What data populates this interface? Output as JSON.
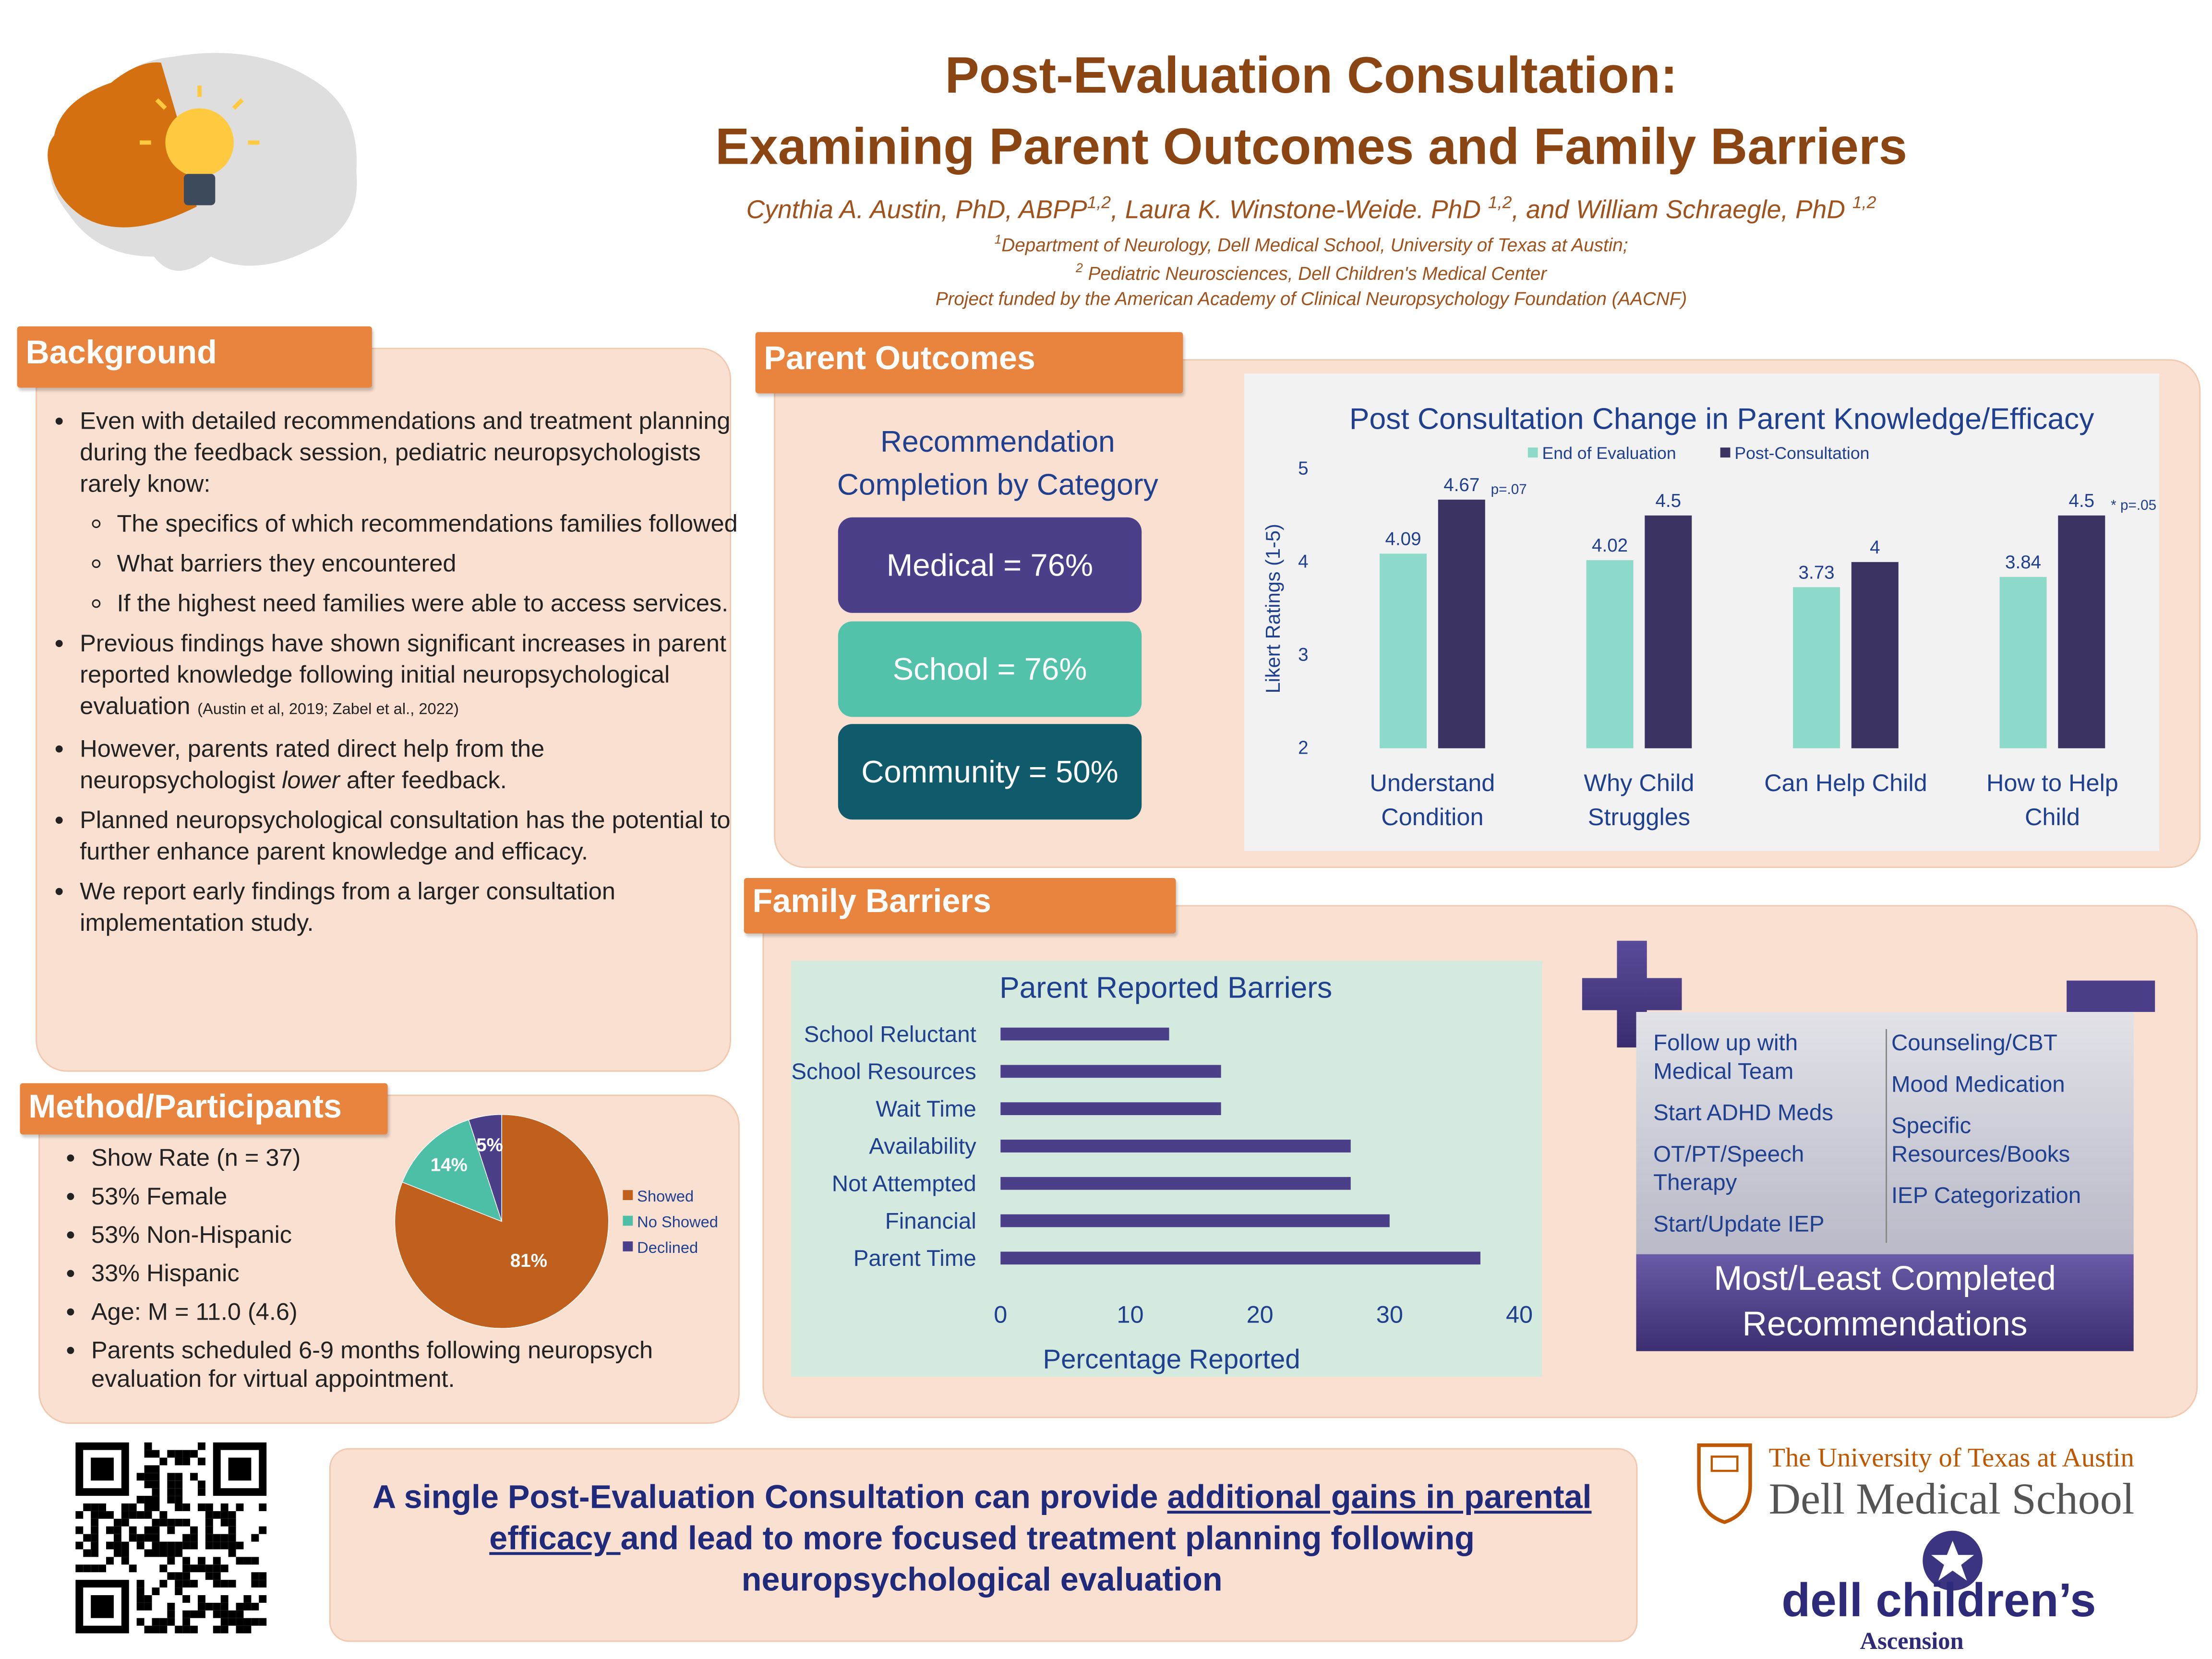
{
  "header": {
    "title": [
      "Post-Evaluation Consultation:",
      "Examining Parent Outcomes and Family Barriers"
    ],
    "authors": [
      {
        "name": "Cynthia A. Austin, PhD, ABPP",
        "sup": "1,2"
      },
      {
        "name": ", Laura K. Winstone-Weide. PhD ",
        "sup": "1,2"
      },
      {
        "name": ", and William Schraegle, PhD ",
        "sup": "1,2"
      }
    ],
    "affiliations": [
      {
        "sup": "1",
        "text": "Department of Neurology, Dell Medical School, University of Texas at Austin;"
      },
      {
        "sup": "2",
        "text": " Pediatric Neurosciences, Dell Children's Medical Center"
      }
    ],
    "funding": "Project funded by the American Academy of Clinical Neuropsychology Foundation (AACNF)"
  },
  "background": {
    "heading": "Background",
    "items": [
      {
        "text": "Even with detailed recommendations and treatment planning during the feedback session, pediatric neuropsychologists rarely know:",
        "sub": [
          "The specifics of which recommendations families followed",
          "What barriers they encountered",
          "If the highest need families were able to access services."
        ]
      },
      {
        "text": "Previous findings have shown significant increases in parent reported knowledge following initial neuropsychological evaluation",
        "cite": "(Austin et al, 2019; Zabel et al., 2022)"
      },
      {
        "text": "However, parents rated direct help from the neuropsychologist ",
        "em": "lower",
        "after": " after feedback."
      },
      {
        "text": "Planned neuropsychological consultation has the potential to further enhance parent knowledge and efficacy."
      },
      {
        "text": "We report early findings from a larger consultation implementation study."
      }
    ]
  },
  "method": {
    "heading": "Method/Participants",
    "items": [
      "Show Rate (n = 37)",
      "53% Female",
      "53% Non-Hispanic",
      "33% Hispanic",
      "Age: M = 11.0 (4.6)",
      "Parents scheduled 6-9 months following neuropsych evaluation for virtual appointment."
    ]
  },
  "parent_outcomes": {
    "heading": "Parent Outcomes",
    "rec_title": "Recommendation Completion by Category",
    "rec_items": [
      "Medical = 76%",
      "School = 76%",
      "Community = 50%"
    ]
  },
  "family_barriers": {
    "heading": "Family Barriers",
    "most": [
      "Follow up with Medical Team",
      "Start ADHD Meds",
      "OT/PT/Speech Therapy",
      "Start/Update IEP"
    ],
    "least": [
      "Counseling/CBT",
      "Mood Medication",
      "Specific Resources/Books",
      "IEP Categorization"
    ],
    "caption": "Most/Least Completed Recommendations"
  },
  "chart_data": [
    {
      "type": "pie",
      "categories": [
        "Showed",
        "No Showed",
        "Declined"
      ],
      "values": [
        81,
        14,
        5
      ],
      "value_labels": [
        "81%",
        "14%",
        "5%"
      ],
      "colors": [
        "#c0601c",
        "#4dbfa6",
        "#4b3f8a"
      ],
      "legend": "right"
    },
    {
      "type": "bar",
      "title": "Post Consultation Change in Parent Knowledge/Efficacy",
      "categories": [
        "Understand Condition",
        "Why Child Struggles",
        "Can Help Child",
        "How to Help Child"
      ],
      "series": [
        {
          "name": "End of Evaluation",
          "color": "#8dd9ca",
          "values": [
            4.09,
            4.02,
            3.73,
            3.84
          ]
        },
        {
          "name": "Post-Consultation",
          "color": "#3b3463",
          "values": [
            4.67,
            4.5,
            4,
            4.5
          ]
        }
      ],
      "annotations": [
        "p=.07",
        null,
        null,
        "* p=.05"
      ],
      "ylabel": "Likert Ratings (1-5)",
      "ylim": [
        2,
        5
      ],
      "yticks": [
        2,
        3,
        4,
        5
      ],
      "legend": "top"
    },
    {
      "type": "bar",
      "orientation": "horizontal",
      "title": "Parent Reported Barriers",
      "categories": [
        "School Reluctant",
        "School Resources",
        "Wait Time",
        "Availability",
        "Not Attempted",
        "Financial",
        "Parent Time"
      ],
      "values": [
        13,
        17,
        17,
        27,
        27,
        30,
        37
      ],
      "color": "#4b3f8a",
      "xlabel": "Percentage Reported",
      "xlim": [
        0,
        40
      ],
      "xticks": [
        0,
        10,
        20,
        30,
        40
      ]
    }
  ],
  "conclusion": {
    "before": "A single Post-Evaluation Consultation can provide ",
    "underlined": "additional gains in parental efficacy ",
    "after": "and lead to more focused treatment planning following neuropsychological evaluation"
  },
  "logos": {
    "university": "The University of Texas at Austin",
    "school": "Dell Medical School",
    "hospital": "dell children’s",
    "network": "Ascension"
  }
}
